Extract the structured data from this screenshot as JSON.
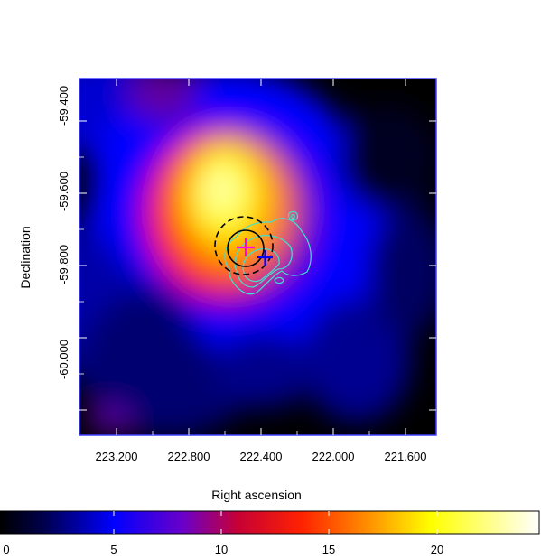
{
  "image": {
    "description": "",
    "x_axis": {
      "label": "Right ascension",
      "ticks": [
        "223.200",
        "222.800",
        "222.400",
        "222.000",
        "221.600"
      ]
    },
    "y_axis": {
      "label": "Declination",
      "ticks": [
        "-59.400",
        "-59.600",
        "-59.800",
        "-60.000"
      ]
    },
    "colorbar": {
      "ticks": [
        "0",
        "5",
        "10",
        "15",
        "20"
      ]
    },
    "colors": {
      "contour": "#40e0d0",
      "marker_magenta": "#ff00ff",
      "marker_blue": "#0000ff",
      "frame": "#4040ff"
    }
  }
}
